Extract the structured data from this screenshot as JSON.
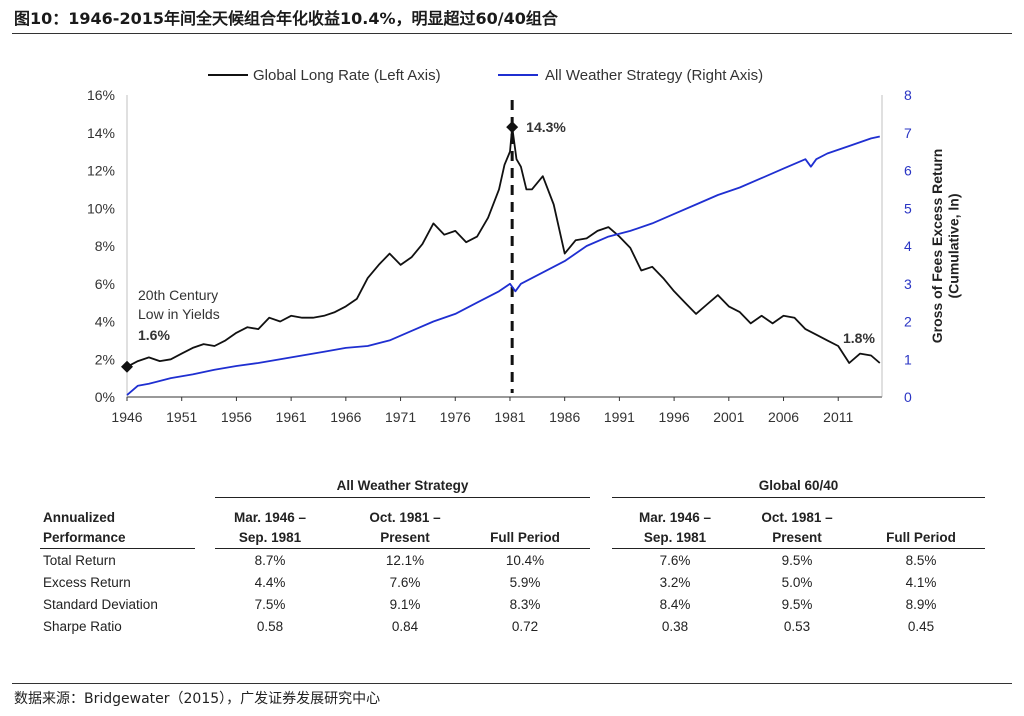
{
  "figure_title": "图10：1946-2015年间全天候组合年化收益10.4%，明显超过60/40组合",
  "source_note": "数据来源：Bridgewater（2015），广发证券发展研究中心",
  "colors": {
    "long_rate": "#111111",
    "all_weather": "#1f2fd1",
    "right_axis": "#2a35c4"
  },
  "chart_data": {
    "type": "line",
    "title": "",
    "xlabel": "",
    "ylabel": "",
    "ylabel_right": "Gross of Fees Excess Return (Cumulative, ln)",
    "x_ticks": [
      "1946",
      "1951",
      "1956",
      "1961",
      "1966",
      "1971",
      "1976",
      "1981",
      "1986",
      "1991",
      "1996",
      "2001",
      "2006",
      "2011"
    ],
    "xlim": [
      1946,
      2015
    ],
    "y_left_ticks": [
      "0%",
      "2%",
      "4%",
      "6%",
      "8%",
      "10%",
      "12%",
      "14%",
      "16%"
    ],
    "ylim_left": [
      0,
      16
    ],
    "y_right_ticks": [
      "0",
      "1",
      "2",
      "3",
      "4",
      "5",
      "6",
      "7",
      "8"
    ],
    "ylim_right": [
      0,
      8
    ],
    "legend_position": "top",
    "grid": false,
    "marker_line_x": 1981.2,
    "series": [
      {
        "name": "Global Long Rate (Left Axis)",
        "axis": "left",
        "x": [
          1946,
          1947,
          1948,
          1949,
          1950,
          1951,
          1952,
          1953,
          1954,
          1955,
          1956,
          1957,
          1958,
          1959,
          1960,
          1961,
          1962,
          1963,
          1964,
          1965,
          1966,
          1967,
          1968,
          1969,
          1970,
          1971,
          1972,
          1973,
          1974,
          1975,
          1976,
          1977,
          1978,
          1979,
          1980,
          1980.5,
          1981,
          1981.2,
          1981.6,
          1982,
          1982.5,
          1983,
          1984,
          1985,
          1986,
          1987,
          1988,
          1989,
          1990,
          1991,
          1992,
          1993,
          1994,
          1995,
          1996,
          1997,
          1998,
          1999,
          2000,
          2001,
          2002,
          2003,
          2004,
          2005,
          2006,
          2007,
          2008,
          2009,
          2010,
          2011,
          2012,
          2013,
          2014,
          2014.8
        ],
        "values": [
          1.6,
          1.9,
          2.1,
          1.9,
          2.0,
          2.3,
          2.6,
          2.8,
          2.7,
          3.0,
          3.4,
          3.7,
          3.6,
          4.2,
          4.0,
          4.3,
          4.2,
          4.2,
          4.3,
          4.5,
          4.8,
          5.2,
          6.3,
          7.0,
          7.6,
          7.0,
          7.4,
          8.1,
          9.2,
          8.6,
          8.8,
          8.2,
          8.5,
          9.5,
          11.0,
          12.3,
          13.0,
          14.3,
          12.6,
          12.2,
          11.0,
          11.0,
          11.7,
          10.2,
          7.6,
          8.3,
          8.4,
          8.8,
          9.0,
          8.5,
          7.9,
          6.7,
          6.9,
          6.3,
          5.6,
          5.0,
          4.4,
          4.9,
          5.4,
          4.8,
          4.5,
          3.9,
          4.3,
          3.9,
          4.3,
          4.2,
          3.6,
          3.3,
          3.0,
          2.7,
          1.8,
          2.3,
          2.2,
          1.8
        ]
      },
      {
        "name": "All Weather Strategy (Right Axis)",
        "axis": "right",
        "x": [
          1946,
          1947,
          1948,
          1950,
          1952,
          1954,
          1956,
          1958,
          1960,
          1962,
          1964,
          1966,
          1968,
          1970,
          1972,
          1974,
          1976,
          1978,
          1980,
          1981,
          1981.5,
          1982,
          1984,
          1986,
          1988,
          1990,
          1992,
          1994,
          1996,
          1998,
          2000,
          2002,
          2004,
          2006,
          2008,
          2008.5,
          2009,
          2010,
          2012,
          2014,
          2014.8
        ],
        "values": [
          0.05,
          0.3,
          0.35,
          0.5,
          0.6,
          0.72,
          0.82,
          0.9,
          1.0,
          1.1,
          1.2,
          1.3,
          1.35,
          1.5,
          1.75,
          2.0,
          2.2,
          2.5,
          2.8,
          3.0,
          2.8,
          3.0,
          3.3,
          3.6,
          4.0,
          4.25,
          4.4,
          4.6,
          4.85,
          5.1,
          5.35,
          5.55,
          5.8,
          6.05,
          6.3,
          6.1,
          6.3,
          6.45,
          6.65,
          6.85,
          6.9
        ]
      }
    ],
    "annotations": {
      "low_caption_line1": "20th Century",
      "low_caption_line2": "Low in Yields",
      "start_value_label": "1.6%",
      "peak_value_label": "14.3%",
      "end_value_label": "1.8%"
    }
  },
  "table": {
    "group_left": "All Weather Strategy",
    "group_right": "Global 60/40",
    "row_header_line1": "Annualized",
    "row_header_line2": "Performance",
    "col1_line1": "Mar. 1946 –",
    "col1_line2": "Sep. 1981",
    "col2_line1": "Oct. 1981 –",
    "col2_line2": "Present",
    "col3_line1": "",
    "col3_line2": "Full Period",
    "rows": [
      {
        "label": "Total Return",
        "aw": [
          "8.7%",
          "12.1%",
          "10.4%"
        ],
        "g": [
          "7.6%",
          "9.5%",
          "8.5%"
        ]
      },
      {
        "label": "Excess Return",
        "aw": [
          "4.4%",
          "7.6%",
          "5.9%"
        ],
        "g": [
          "3.2%",
          "5.0%",
          "4.1%"
        ]
      },
      {
        "label": "Standard Deviation",
        "aw": [
          "7.5%",
          "9.1%",
          "8.3%"
        ],
        "g": [
          "8.4%",
          "9.5%",
          "8.9%"
        ]
      },
      {
        "label": "Sharpe Ratio",
        "aw": [
          "0.58",
          "0.84",
          "0.72"
        ],
        "g": [
          "0.38",
          "0.53",
          "0.45"
        ]
      }
    ]
  }
}
